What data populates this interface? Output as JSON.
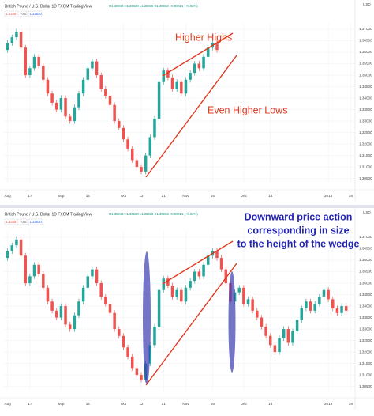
{
  "chart_data": [
    {
      "type": "candlestick",
      "title": "British Pound / U.S. Dollar  1D  FXCM  TradingView",
      "ohlc_text": "O1.35942 H1.36020 L1.35818 C1.35963 +0.00021 (+0.02%)",
      "inputs": [
        "1.32687",
        "0.0",
        "1.32830"
      ],
      "axis_currency": "USD",
      "annotations": [
        "Higher Highs",
        "Even Higher Lows"
      ],
      "up_color": "#26a69a",
      "down_color": "#ef5350",
      "grid": true,
      "xlim": [
        -1,
        78
      ],
      "xticks": [
        {
          "value": 0,
          "label": "Aug"
        },
        {
          "value": 5,
          "label": "17"
        },
        {
          "value": 12,
          "label": "Sep"
        },
        {
          "value": 18,
          "label": "14"
        },
        {
          "value": 26,
          "label": "Oct"
        },
        {
          "value": 30,
          "label": "12"
        },
        {
          "value": 35,
          "label": "21"
        },
        {
          "value": 40,
          "label": "Nov"
        },
        {
          "value": 46,
          "label": "16"
        },
        {
          "value": 53,
          "label": "Dec"
        },
        {
          "value": 59,
          "label": "14"
        },
        {
          "value": 72,
          "label": "2018"
        },
        {
          "value": 77,
          "label": "18"
        }
      ],
      "ylim": [
        1.3028,
        1.3731
      ],
      "yticks": [
        {
          "value": 1.37,
          "label": "1.37000"
        },
        {
          "value": 1.365,
          "label": "1.36500"
        },
        {
          "value": 1.36,
          "label": "1.36000"
        },
        {
          "value": 1.355,
          "label": "1.35500"
        },
        {
          "value": 1.35,
          "label": "1.35000"
        },
        {
          "value": 1.345,
          "label": "1.34500"
        },
        {
          "value": 1.34,
          "label": "1.34000"
        },
        {
          "value": 1.335,
          "label": "1.33500"
        },
        {
          "value": 1.33,
          "label": "1.33000"
        },
        {
          "value": 1.325,
          "label": "1.32500"
        },
        {
          "value": 1.32,
          "label": "1.32000"
        },
        {
          "value": 1.315,
          "label": "1.31500"
        },
        {
          "value": 1.31,
          "label": "1.31000"
        },
        {
          "value": 1.305,
          "label": "1.30500"
        }
      ],
      "open": [
        1.361,
        1.364,
        1.3665,
        1.369,
        1.362,
        1.35,
        1.353,
        1.358,
        1.354,
        1.348,
        1.342,
        1.338,
        1.335,
        1.34,
        1.332,
        1.33,
        1.336,
        1.342,
        1.348,
        1.353,
        1.356,
        1.35,
        1.344,
        1.341,
        1.337,
        1.33,
        1.327,
        1.322,
        1.318,
        1.313,
        1.31,
        1.308,
        1.315,
        1.323,
        1.331,
        1.347,
        1.352,
        1.349,
        1.344,
        1.347,
        1.342,
        1.348,
        1.351,
        1.355,
        1.353,
        1.358,
        1.362,
        1.364
      ],
      "high": [
        1.3652,
        1.3677,
        1.3702,
        1.3702,
        1.3632,
        1.3542,
        1.3592,
        1.3592,
        1.3552,
        1.3492,
        1.3432,
        1.3392,
        1.3412,
        1.3412,
        1.3332,
        1.3372,
        1.3432,
        1.3492,
        1.3542,
        1.3572,
        1.3572,
        1.3512,
        1.3452,
        1.3422,
        1.3382,
        1.3312,
        1.3282,
        1.3232,
        1.3192,
        1.3142,
        1.3112,
        1.3162,
        1.3242,
        1.3322,
        1.3482,
        1.3532,
        1.3532,
        1.3502,
        1.3482,
        1.3482,
        1.3492,
        1.3522,
        1.3562,
        1.3562,
        1.3592,
        1.3632,
        1.3652,
        1.3652
      ],
      "low": [
        1.3598,
        1.3628,
        1.3653,
        1.3608,
        1.3488,
        1.3488,
        1.3518,
        1.3528,
        1.3468,
        1.3408,
        1.3368,
        1.3338,
        1.3338,
        1.3308,
        1.3288,
        1.3288,
        1.3348,
        1.3408,
        1.3468,
        1.3518,
        1.3488,
        1.3428,
        1.3398,
        1.3358,
        1.3288,
        1.3258,
        1.3208,
        1.3168,
        1.3118,
        1.3088,
        1.3068,
        1.3068,
        1.3138,
        1.3218,
        1.3298,
        1.3458,
        1.3478,
        1.3428,
        1.3428,
        1.3408,
        1.3408,
        1.3468,
        1.3498,
        1.3518,
        1.3518,
        1.3568,
        1.3608,
        1.3598
      ],
      "close": [
        1.364,
        1.3665,
        1.369,
        1.362,
        1.35,
        1.353,
        1.358,
        1.354,
        1.348,
        1.342,
        1.338,
        1.335,
        1.34,
        1.332,
        1.33,
        1.336,
        1.342,
        1.348,
        1.353,
        1.356,
        1.35,
        1.344,
        1.341,
        1.337,
        1.33,
        1.327,
        1.322,
        1.318,
        1.313,
        1.31,
        1.308,
        1.315,
        1.323,
        1.331,
        1.347,
        1.352,
        1.349,
        1.344,
        1.347,
        1.342,
        1.348,
        1.351,
        1.355,
        1.353,
        1.358,
        1.362,
        1.364,
        1.361
      ]
    },
    {
      "type": "candlestick",
      "title": "British Pound / U.S. Dollar  1D  FXCM  TradingView",
      "ohlc_text": "O1.35942 H1.36020 L1.35818 C1.35963 +0.00021 (+0.02%)",
      "inputs": [
        "1.32687",
        "0.0",
        "1.32830"
      ],
      "axis_currency": "USD",
      "annotations": [
        "Downward price action",
        "corresponding in size",
        "to the height of the wedge"
      ],
      "up_color": "#26a69a",
      "down_color": "#ef5350",
      "grid": true,
      "xlim": [
        -1,
        78
      ],
      "xticks": [
        {
          "value": 0,
          "label": "Aug"
        },
        {
          "value": 5,
          "label": "17"
        },
        {
          "value": 12,
          "label": "Sep"
        },
        {
          "value": 18,
          "label": "14"
        },
        {
          "value": 26,
          "label": "Oct"
        },
        {
          "value": 30,
          "label": "12"
        },
        {
          "value": 35,
          "label": "21"
        },
        {
          "value": 40,
          "label": "Nov"
        },
        {
          "value": 46,
          "label": "16"
        },
        {
          "value": 53,
          "label": "Dec"
        },
        {
          "value": 59,
          "label": "14"
        },
        {
          "value": 72,
          "label": "2018"
        },
        {
          "value": 77,
          "label": "18"
        }
      ],
      "ylim": [
        1.3028,
        1.3731
      ],
      "yticks": [
        {
          "value": 1.37,
          "label": "1.37000"
        },
        {
          "value": 1.365,
          "label": "1.36500"
        },
        {
          "value": 1.36,
          "label": "1.36000"
        },
        {
          "value": 1.355,
          "label": "1.35500"
        },
        {
          "value": 1.35,
          "label": "1.35000"
        },
        {
          "value": 1.345,
          "label": "1.34500"
        },
        {
          "value": 1.34,
          "label": "1.34000"
        },
        {
          "value": 1.335,
          "label": "1.33500"
        },
        {
          "value": 1.33,
          "label": "1.33000"
        },
        {
          "value": 1.325,
          "label": "1.32500"
        },
        {
          "value": 1.32,
          "label": "1.32000"
        },
        {
          "value": 1.315,
          "label": "1.31500"
        },
        {
          "value": 1.31,
          "label": "1.31000"
        },
        {
          "value": 1.305,
          "label": "1.30500"
        }
      ],
      "open": [
        1.361,
        1.364,
        1.3665,
        1.369,
        1.362,
        1.35,
        1.353,
        1.358,
        1.354,
        1.348,
        1.342,
        1.338,
        1.335,
        1.34,
        1.332,
        1.33,
        1.336,
        1.342,
        1.348,
        1.353,
        1.356,
        1.35,
        1.344,
        1.341,
        1.337,
        1.33,
        1.327,
        1.322,
        1.318,
        1.313,
        1.31,
        1.308,
        1.315,
        1.323,
        1.331,
        1.347,
        1.352,
        1.349,
        1.344,
        1.347,
        1.342,
        1.348,
        1.351,
        1.355,
        1.353,
        1.358,
        1.362,
        1.364,
        1.361,
        1.356,
        1.35,
        1.342,
        1.346,
        1.348,
        1.341,
        1.343,
        1.338,
        1.335,
        1.331,
        1.327,
        1.323,
        1.32,
        1.326,
        1.33,
        1.324,
        1.329,
        1.334,
        1.339,
        1.342,
        1.338,
        1.341,
        1.344,
        1.347,
        1.343,
        1.339,
        1.337,
        1.34
      ],
      "high": [
        1.3652,
        1.3677,
        1.3702,
        1.3702,
        1.3632,
        1.3542,
        1.3592,
        1.3592,
        1.3552,
        1.3492,
        1.3432,
        1.3392,
        1.3412,
        1.3412,
        1.3332,
        1.3372,
        1.3432,
        1.3492,
        1.3542,
        1.3572,
        1.3572,
        1.3512,
        1.3452,
        1.3422,
        1.3382,
        1.3312,
        1.3282,
        1.3232,
        1.3192,
        1.3142,
        1.3112,
        1.3162,
        1.3242,
        1.3322,
        1.3482,
        1.3532,
        1.3532,
        1.3502,
        1.3482,
        1.3482,
        1.3492,
        1.3522,
        1.3562,
        1.3562,
        1.3592,
        1.3632,
        1.3652,
        1.3652,
        1.3622,
        1.3572,
        1.3512,
        1.3472,
        1.3492,
        1.3492,
        1.3442,
        1.3442,
        1.3392,
        1.3362,
        1.3322,
        1.3282,
        1.3242,
        1.3272,
        1.3312,
        1.3312,
        1.3302,
        1.3352,
        1.3402,
        1.3432,
        1.3432,
        1.3422,
        1.3452,
        1.3482,
        1.3482,
        1.3442,
        1.3402,
        1.3412,
        1.3412
      ],
      "low": [
        1.3598,
        1.3628,
        1.3653,
        1.3608,
        1.3488,
        1.3488,
        1.3518,
        1.3528,
        1.3468,
        1.3408,
        1.3368,
        1.3338,
        1.3338,
        1.3308,
        1.3288,
        1.3288,
        1.3348,
        1.3408,
        1.3468,
        1.3518,
        1.3488,
        1.3428,
        1.3398,
        1.3358,
        1.3288,
        1.3258,
        1.3208,
        1.3168,
        1.3118,
        1.3088,
        1.3068,
        1.3068,
        1.3138,
        1.3218,
        1.3298,
        1.3458,
        1.3478,
        1.3428,
        1.3428,
        1.3408,
        1.3408,
        1.3468,
        1.3498,
        1.3518,
        1.3518,
        1.3568,
        1.3608,
        1.3598,
        1.3548,
        1.3488,
        1.3408,
        1.3408,
        1.3448,
        1.3398,
        1.3398,
        1.3368,
        1.3338,
        1.3298,
        1.3258,
        1.3218,
        1.3188,
        1.3188,
        1.3248,
        1.3228,
        1.3228,
        1.3278,
        1.3328,
        1.3378,
        1.3368,
        1.3368,
        1.3398,
        1.3428,
        1.3418,
        1.3378,
        1.3358,
        1.3358,
        1.3368
      ],
      "close": [
        1.364,
        1.3665,
        1.369,
        1.362,
        1.35,
        1.353,
        1.358,
        1.354,
        1.348,
        1.342,
        1.338,
        1.335,
        1.34,
        1.332,
        1.33,
        1.336,
        1.342,
        1.348,
        1.353,
        1.356,
        1.35,
        1.344,
        1.341,
        1.337,
        1.33,
        1.327,
        1.322,
        1.318,
        1.313,
        1.31,
        1.308,
        1.315,
        1.323,
        1.331,
        1.347,
        1.352,
        1.349,
        1.344,
        1.347,
        1.342,
        1.348,
        1.351,
        1.355,
        1.353,
        1.358,
        1.362,
        1.364,
        1.361,
        1.356,
        1.35,
        1.342,
        1.346,
        1.348,
        1.341,
        1.343,
        1.338,
        1.335,
        1.331,
        1.327,
        1.323,
        1.32,
        1.326,
        1.33,
        1.324,
        1.329,
        1.334,
        1.339,
        1.342,
        1.338,
        1.341,
        1.344,
        1.347,
        1.343,
        1.339,
        1.337,
        1.34,
        1.338
      ]
    }
  ]
}
